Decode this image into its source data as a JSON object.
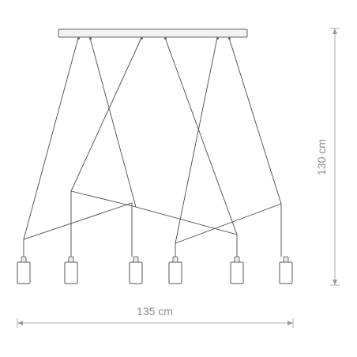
{
  "dimensions": {
    "width_label": "135 cm",
    "height_label": "130 cm"
  },
  "lamp": {
    "canopy_hooks": 6,
    "pendant_count": 6
  },
  "colors": {
    "wire": "#4a4a4a",
    "dimension": "#9a9a9a",
    "outline": "#555555"
  }
}
